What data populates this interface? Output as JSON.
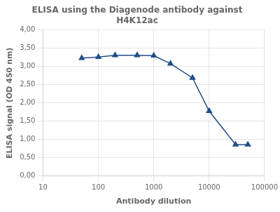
{
  "chart_data": {
    "type": "line",
    "title": "ELISA using the Diagenode antibody against\nH4K12ac",
    "xlabel": "Antibody dilution",
    "ylabel": "ELISA signal (OD 450 nm)",
    "x": [
      50,
      100,
      200,
      500,
      1000,
      2000,
      5000,
      10000,
      30000,
      50000
    ],
    "values": [
      3.23,
      3.26,
      3.31,
      3.31,
      3.3,
      3.08,
      2.69,
      1.78,
      0.86,
      0.86
    ],
    "color": "#1F4E8C",
    "marker": "triangle",
    "log": "x",
    "xlim": [
      10,
      100000
    ],
    "xticks": [
      10,
      100,
      1000,
      10000,
      100000
    ],
    "ylim": [
      0.0,
      4.0
    ],
    "yticks": [
      {
        "value": 0.0,
        "label": "0,00"
      },
      {
        "value": 0.5,
        "label": "0,50"
      },
      {
        "value": 1.0,
        "label": "1,00"
      },
      {
        "value": 1.5,
        "label": "1,50"
      },
      {
        "value": 2.0,
        "label": "2,00"
      },
      {
        "value": 2.5,
        "label": "2,50"
      },
      {
        "value": 3.0,
        "label": "3,00"
      },
      {
        "value": 3.5,
        "label": "3,50"
      },
      {
        "value": 4.0,
        "label": "4,00"
      }
    ],
    "grid": true
  }
}
